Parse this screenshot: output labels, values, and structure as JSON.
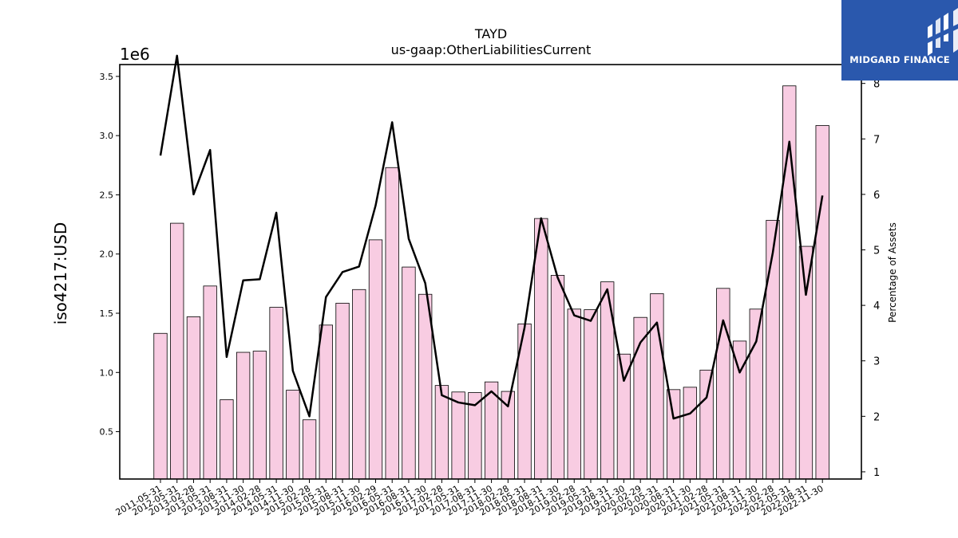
{
  "chart_data": {
    "type": "bar",
    "title": "TAYD",
    "subtitle": "us-gaap:OtherLiabilitiesCurrent",
    "ylabel": "iso4217:USD",
    "y_offset_label": "1e6",
    "y2label": "Percentage of Assets",
    "ylim": [
      100000,
      3600000
    ],
    "y2lim": [
      0.87,
      8.34
    ],
    "y_ticks": [
      0.5,
      1.0,
      1.5,
      2.0,
      2.5,
      3.0,
      3.5
    ],
    "y_tick_labels": [
      "0.5",
      "1.0",
      "1.5",
      "2.0",
      "2.5",
      "3.0",
      "3.5"
    ],
    "y2_ticks": [
      1,
      2,
      3,
      4,
      5,
      6,
      7,
      8
    ],
    "y2_tick_labels": [
      "1",
      "2",
      "3",
      "4",
      "5",
      "6",
      "7",
      "8"
    ],
    "grid": false,
    "bar_color": "#f8cce2",
    "line_color": "#000000",
    "categories": [
      "2011-05-31",
      "2012-05-31",
      "2013-02-28",
      "2013-05-31",
      "2013-08-31",
      "2013-11-30",
      "2014-02-28",
      "2014-05-31",
      "2014-11-30",
      "2015-02-28",
      "2015-05-31",
      "2015-08-31",
      "2015-11-30",
      "2016-02-29",
      "2016-05-31",
      "2016-08-31",
      "2016-11-30",
      "2017-02-28",
      "2017-05-31",
      "2017-08-31",
      "2017-11-30",
      "2018-02-28",
      "2018-05-31",
      "2018-08-31",
      "2018-11-30",
      "2019-02-28",
      "2019-05-31",
      "2019-08-31",
      "2019-11-30",
      "2020-02-29",
      "2020-05-31",
      "2020-08-31",
      "2020-11-30",
      "2021-02-28",
      "2021-05-31",
      "2021-08-31",
      "2021-11-30",
      "2022-02-28",
      "2022-05-31",
      "2022-08-31",
      "2022-11-30"
    ],
    "series": [
      {
        "kind": "bar",
        "axis": "left",
        "values": [
          1330000,
          2260000,
          1470000,
          1730000,
          770000,
          1170000,
          1180000,
          1550000,
          850000,
          600000,
          1400000,
          1585000,
          1700000,
          2120000,
          2730000,
          1890000,
          1660000,
          890000,
          835000,
          830000,
          920000,
          840000,
          1410000,
          2300000,
          1820000,
          1535000,
          1530000,
          1765000,
          1155000,
          1465000,
          1665000,
          855000,
          875000,
          1020000,
          1710000,
          1265000,
          1535000,
          2285000,
          3420000,
          2065000,
          3085000
        ]
      },
      {
        "kind": "line",
        "axis": "right",
        "values": [
          6.7,
          8.5,
          6.0,
          6.8,
          3.07,
          4.45,
          4.47,
          5.67,
          2.82,
          2.0,
          4.15,
          4.6,
          4.7,
          5.8,
          7.3,
          5.2,
          4.4,
          2.38,
          2.25,
          2.2,
          2.45,
          2.18,
          3.6,
          5.57,
          4.5,
          3.82,
          3.72,
          4.29,
          2.64,
          3.33,
          3.69,
          1.96,
          2.05,
          2.34,
          3.73,
          2.79,
          3.35,
          4.95,
          6.95,
          4.19,
          5.98
        ]
      }
    ]
  },
  "logo": {
    "text": "MIDGARD FINANCE"
  }
}
